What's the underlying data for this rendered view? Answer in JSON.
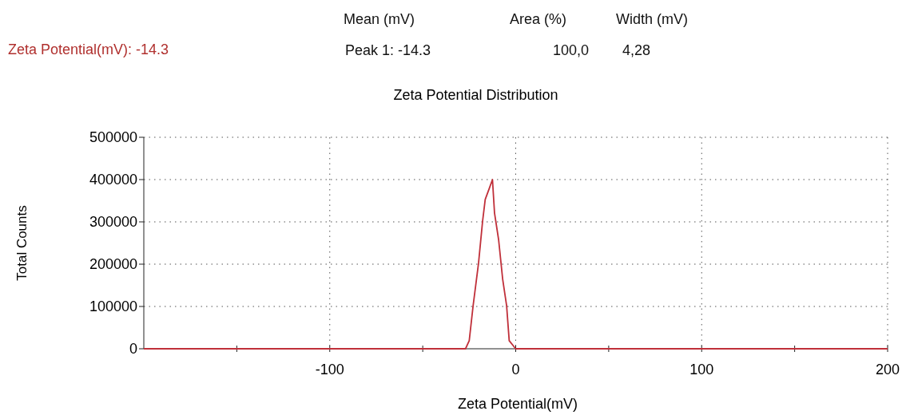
{
  "chart_data": {
    "type": "line",
    "title": "Zeta Potential Distribution",
    "xlabel": "Zeta Potential(mV)",
    "ylabel": "Total Counts",
    "annotations": [
      "Zeta Potential(mV):  -14.3",
      "Mean (mV)",
      "Area (%)",
      "Width (mV)",
      "Peak 1: -14.3",
      "100,0",
      "4,28"
    ],
    "series": [
      {
        "color": "#c0303a",
        "x": [
          -200,
          -27,
          -25,
          -22.9,
          -20,
          -17.8,
          -16.4,
          -14.3,
          -12.5,
          -11.4,
          -9.2,
          -7,
          -4.9,
          -3.5,
          -1.3,
          0,
          200
        ],
        "values": [
          0,
          0,
          19000,
          102000,
          202000,
          302000,
          353000,
          378000,
          400000,
          321000,
          258000,
          164000,
          102000,
          19000,
          7000,
          0,
          0
        ]
      }
    ],
    "xlim": [
      -200,
      200
    ],
    "xticks": [
      {
        "value": -150,
        "label": null
      },
      -100,
      {
        "value": -50,
        "label": null
      },
      0,
      {
        "value": 50,
        "label": null
      },
      100,
      {
        "value": 150,
        "label": null
      },
      200
    ],
    "ylim": [
      0,
      500000
    ],
    "yticks": [
      0,
      100000,
      200000,
      300000,
      400000,
      500000
    ],
    "grid": true,
    "marker": "none",
    "line_style": "solid"
  }
}
